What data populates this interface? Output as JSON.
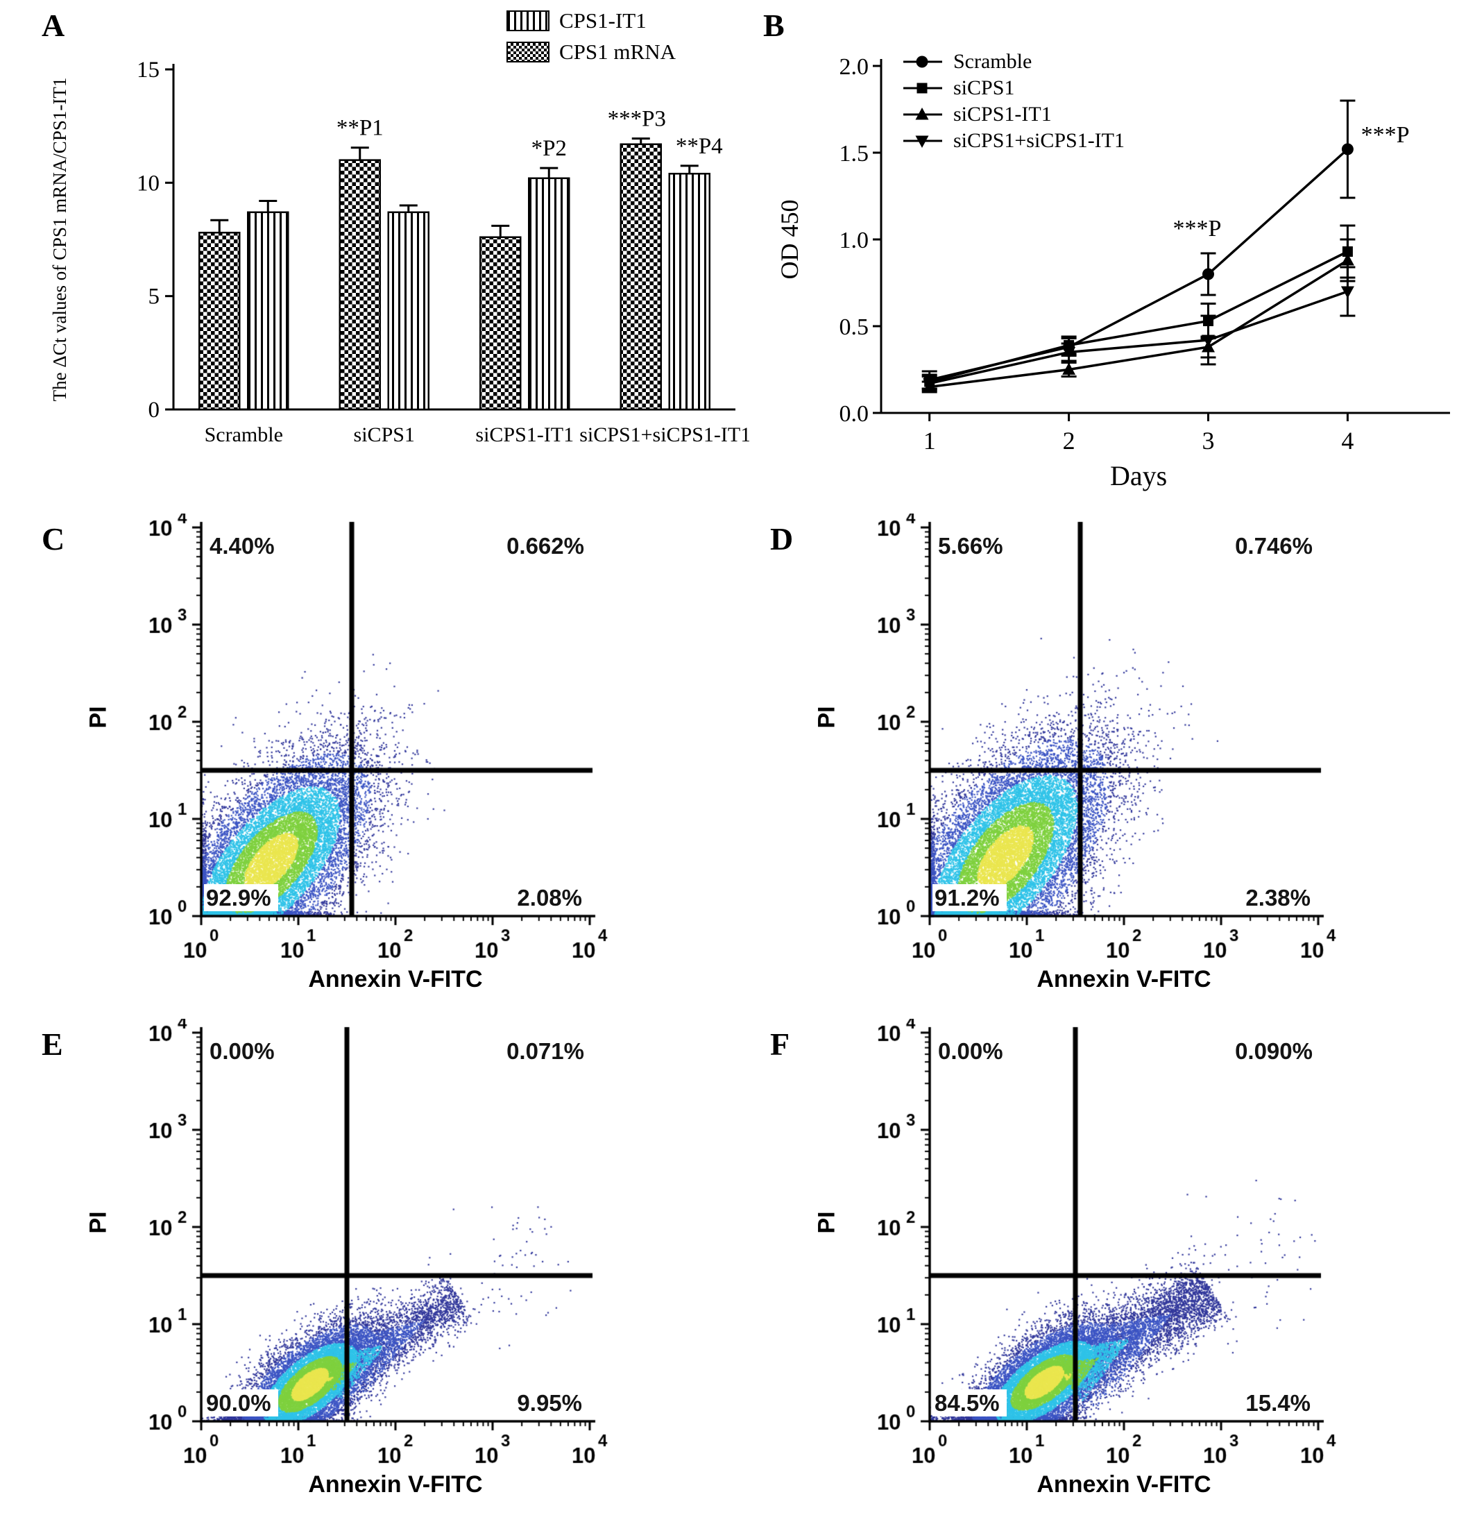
{
  "figure": {
    "panel_labels": [
      "A",
      "B",
      "C",
      "D",
      "E",
      "F"
    ]
  },
  "chart_data": [
    {
      "id": "A",
      "type": "bar",
      "ylabel": "The ΔCt values of CPS1 mRNA/CPS1-IT1",
      "ylim": [
        0,
        15
      ],
      "yticks": [
        0,
        5,
        10,
        15
      ],
      "categories": [
        "Scramble",
        "siCPS1",
        "siCPS1-IT1",
        "siCPS1+siCPS1-IT1"
      ],
      "legend": [
        {
          "label": "CPS1-IT1",
          "pattern": "vstripes"
        },
        {
          "label": "CPS1 mRNA",
          "pattern": "checker"
        }
      ],
      "series": [
        {
          "name": "CPS1 mRNA",
          "pattern": "checker",
          "values": [
            7.8,
            11.0,
            7.6,
            11.7
          ],
          "errors": [
            0.55,
            0.55,
            0.5,
            0.25
          ]
        },
        {
          "name": "CPS1-IT1",
          "pattern": "vstripes",
          "values": [
            8.7,
            8.7,
            10.2,
            10.4
          ],
          "errors": [
            0.5,
            0.3,
            0.45,
            0.35
          ]
        }
      ],
      "annotations": [
        {
          "text": "**P1",
          "group": 1,
          "series": 0,
          "dx": 0
        },
        {
          "text": "*P2",
          "group": 2,
          "series": 1,
          "dx": 0
        },
        {
          "text": "***P3",
          "group": 3,
          "series": 0,
          "dx": -6
        },
        {
          "text": "**P4",
          "group": 3,
          "series": 1,
          "dx": 14
        }
      ]
    },
    {
      "id": "B",
      "type": "line",
      "xlabel": "Days",
      "ylabel": "OD 450",
      "x": [
        1,
        2,
        3,
        4
      ],
      "ylim": [
        0,
        2
      ],
      "yticks": [
        0,
        0.5,
        1,
        1.5,
        2
      ],
      "series": [
        {
          "name": "Scramble",
          "marker": "circle",
          "values": [
            0.19,
            0.38,
            0.8,
            1.52
          ],
          "errors": [
            0.05,
            0.05,
            0.12,
            0.28
          ]
        },
        {
          "name": "siCPS1",
          "marker": "square",
          "values": [
            0.18,
            0.39,
            0.53,
            0.93
          ],
          "errors": [
            0.04,
            0.05,
            0.1,
            0.15
          ]
        },
        {
          "name": "siCPS1-IT1",
          "marker": "triangle-up",
          "values": [
            0.15,
            0.25,
            0.38,
            0.88
          ],
          "errors": [
            0.03,
            0.04,
            0.06,
            0.12
          ]
        },
        {
          "name": "siCPS1+siCPS1-IT1",
          "marker": "triangle-down",
          "values": [
            0.17,
            0.35,
            0.42,
            0.7
          ],
          "errors": [
            0.04,
            0.05,
            0.14,
            0.14
          ]
        }
      ],
      "annotations": [
        {
          "text": "***P",
          "x": 2.92,
          "y": 1.02
        },
        {
          "text": "***P",
          "x": 4.27,
          "y": 1.56
        }
      ]
    },
    {
      "id": "C",
      "type": "scatter",
      "xlabel": "Annexin V-FITC",
      "ylabel": "PI",
      "xlog_range": [
        0,
        4
      ],
      "ylog_range": [
        0,
        4
      ],
      "gate_x": 1.55,
      "gate_y": 1.5,
      "quadrants": {
        "ul": "4.40%",
        "ur": "0.662%",
        "ll": "92.9%",
        "lr": "2.08%"
      },
      "cluster": {
        "n": 16000,
        "cx": 0.72,
        "cy": 0.55,
        "sx": 0.5,
        "sy": 0.55,
        "corr": 0.62
      }
    },
    {
      "id": "D",
      "type": "scatter",
      "xlabel": "Annexin V-FITC",
      "ylabel": "PI",
      "xlog_range": [
        0,
        4
      ],
      "ylog_range": [
        0,
        4
      ],
      "gate_x": 1.55,
      "gate_y": 1.5,
      "quadrants": {
        "ul": "5.66%",
        "ur": "0.746%",
        "ll": "91.2%",
        "lr": "2.38%"
      },
      "cluster": {
        "n": 17000,
        "cx": 0.78,
        "cy": 0.6,
        "sx": 0.52,
        "sy": 0.6,
        "corr": 0.6
      }
    },
    {
      "id": "E",
      "type": "scatter",
      "xlabel": "Annexin V-FITC",
      "ylabel": "PI",
      "xlog_range": [
        0,
        4
      ],
      "ylog_range": [
        0,
        4
      ],
      "gate_x": 1.5,
      "gate_y": 1.5,
      "quadrants": {
        "ul": "0.00%",
        "ur": "0.071%",
        "ll": "90.0%",
        "lr": "9.95%"
      },
      "cluster": {
        "n": 13000,
        "cx": 1.12,
        "cy": 0.38,
        "sx": 0.34,
        "sy": 0.3,
        "corr": 0.65
      },
      "tail": {
        "n": 2400,
        "x0": 1.3,
        "y0": 0.42,
        "dx": 1,
        "dy": 0.62,
        "len": 1.6,
        "sperp": 0.13
      }
    },
    {
      "id": "F",
      "type": "scatter",
      "xlabel": "Annexin V-FITC",
      "ylabel": "PI",
      "xlog_range": [
        0,
        4
      ],
      "ylog_range": [
        0,
        4
      ],
      "gate_x": 1.5,
      "gate_y": 1.5,
      "quadrants": {
        "ul": "0.00%",
        "ur": "0.090%",
        "ll": "84.5%",
        "lr": "15.4%"
      },
      "cluster": {
        "n": 14000,
        "cx": 1.18,
        "cy": 0.4,
        "sx": 0.36,
        "sy": 0.3,
        "corr": 0.65
      },
      "tail": {
        "n": 4200,
        "x0": 1.4,
        "y0": 0.45,
        "dx": 1,
        "dy": 0.6,
        "len": 1.75,
        "sperp": 0.16
      }
    }
  ]
}
